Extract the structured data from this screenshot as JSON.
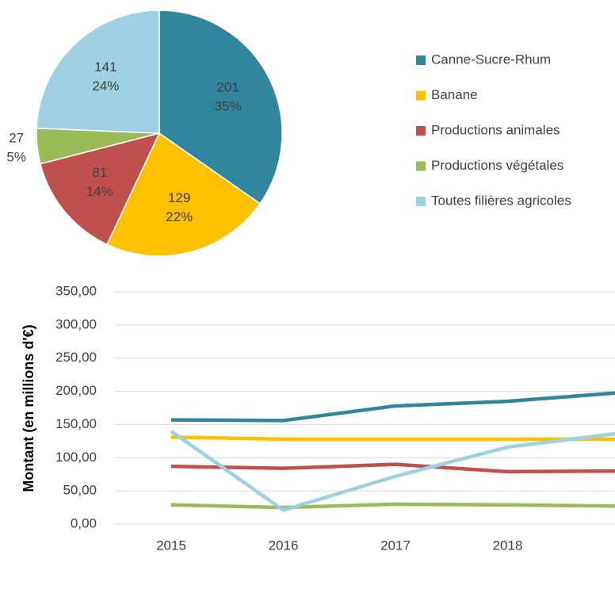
{
  "chart_data": [
    {
      "type": "pie",
      "categories": [
        "Canne-Sucre-Rhum",
        "Banane",
        "Productions animales",
        "Productions végétales",
        "Toutes filières agricoles"
      ],
      "values": [
        201,
        129,
        81,
        27,
        141
      ],
      "percentage_labels": [
        "35%",
        "22%",
        "14%",
        "5%",
        "24%"
      ],
      "colors": [
        "#31859c",
        "#ffc000",
        "#c0504d",
        "#9bbb59",
        "#9dd0e0"
      ],
      "legend": "right"
    },
    {
      "type": "line",
      "y_label": "Montant (en millions d'€)",
      "categories": [
        "2015",
        "2016",
        "2017",
        "2018",
        null
      ],
      "series": [
        {
          "color": "#31859c",
          "values": [
            157,
            156,
            178,
            185,
            198
          ]
        },
        {
          "color": "#ffc000",
          "values": [
            131,
            128,
            128,
            128,
            128
          ]
        },
        {
          "color": "#c0504d",
          "values": [
            87,
            84,
            90,
            79,
            80
          ]
        },
        {
          "color": "#9bbb59",
          "values": [
            29,
            25,
            30,
            29,
            27
          ]
        },
        {
          "color": "#9dd0e0",
          "values": [
            140,
            21,
            72,
            116,
            137
          ]
        }
      ],
      "ylim": [
        0,
        350
      ],
      "yticks": [
        {
          "value": 0,
          "label": "0,00"
        },
        {
          "value": 50,
          "label": "50,00"
        },
        {
          "value": 100,
          "label": "100,00"
        },
        {
          "value": 150,
          "label": "150,00"
        },
        {
          "value": 200,
          "label": "200,00"
        },
        {
          "value": 250,
          "label": "250,00"
        },
        {
          "value": 300,
          "label": "300,00"
        },
        {
          "value": 350,
          "label": "350,00"
        }
      ],
      "grid": true
    }
  ]
}
